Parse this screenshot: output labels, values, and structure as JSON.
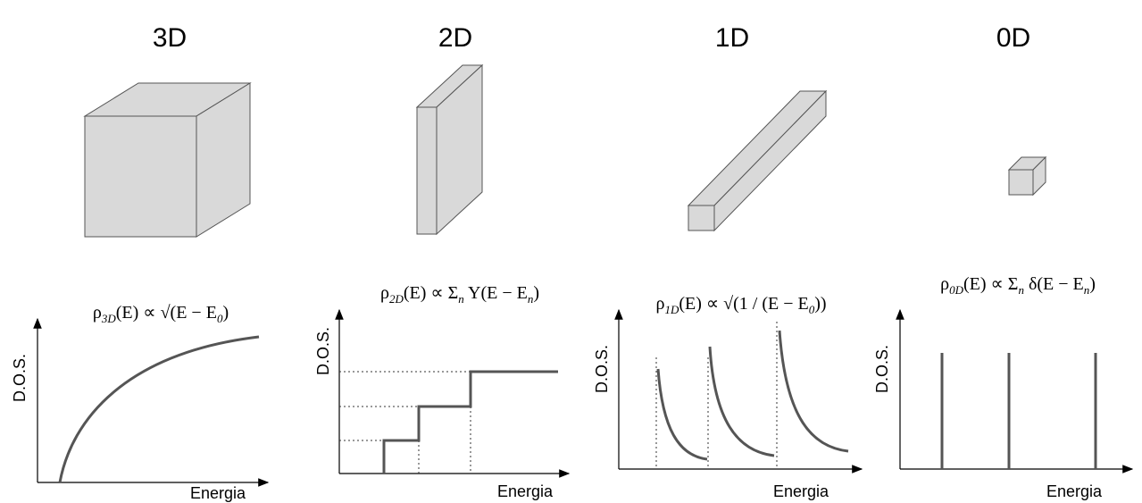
{
  "panels": [
    {
      "title": "3D",
      "formula": [
        "ρ",
        "3D",
        "(E) ∝ √(E − E",
        "0",
        ")"
      ],
      "y_label": "D.O.S.",
      "x_label": "Energia"
    },
    {
      "title": "2D",
      "formula": [
        "ρ",
        "2D",
        "(E) ∝ Σ",
        "n",
        " Y(E − E",
        "n",
        ")"
      ],
      "y_label": "D.O.S.",
      "x_label": "Energia"
    },
    {
      "title": "1D",
      "formula": [
        "ρ",
        "1D",
        "(E) ∝ √(1 / (E − E",
        "0",
        "))"
      ],
      "y_label": "D.O.S.",
      "x_label": "Energia"
    },
    {
      "title": "0D",
      "formula": [
        "ρ",
        "0D",
        "(E) ∝ Σ",
        "n",
        " δ(E − E",
        "n",
        ")"
      ],
      "y_label": "D.O.S.",
      "x_label": "Energia"
    }
  ]
}
